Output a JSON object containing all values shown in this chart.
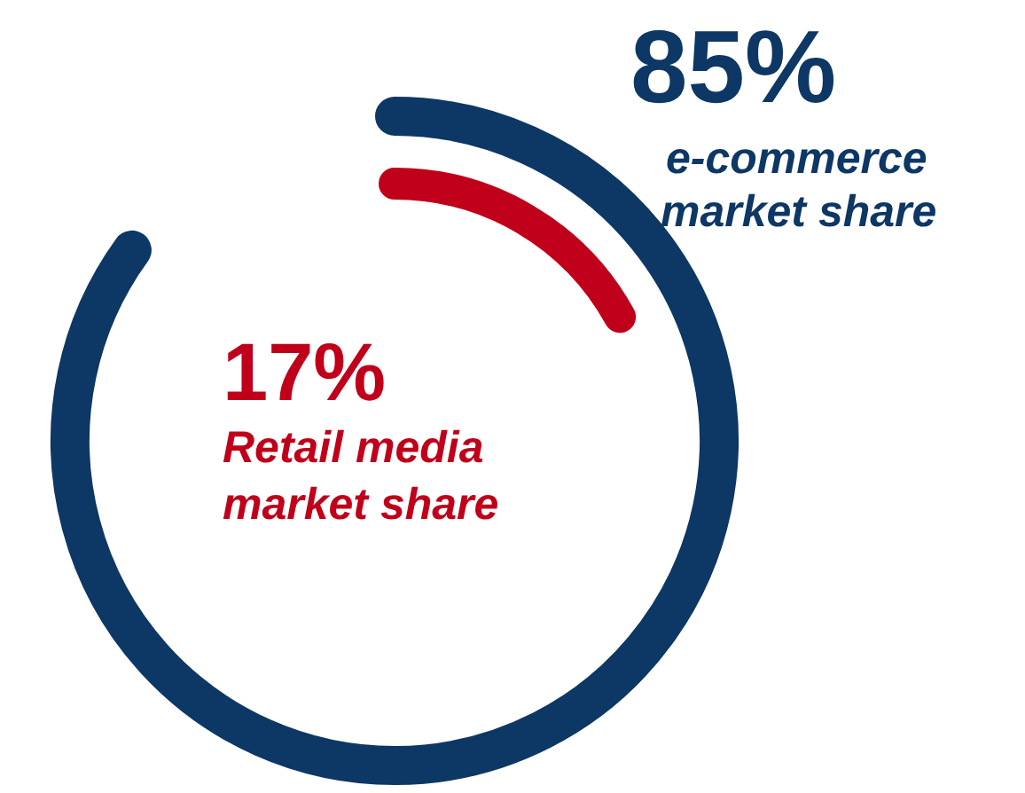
{
  "chart_data": {
    "type": "other",
    "categories": [
      "e-commerce market share",
      "Retail media market share"
    ],
    "values": [
      85,
      17
    ],
    "value_labels": [
      "85%",
      "17%"
    ],
    "colors": [
      "#0d3764",
      "#c0001a"
    ]
  }
}
